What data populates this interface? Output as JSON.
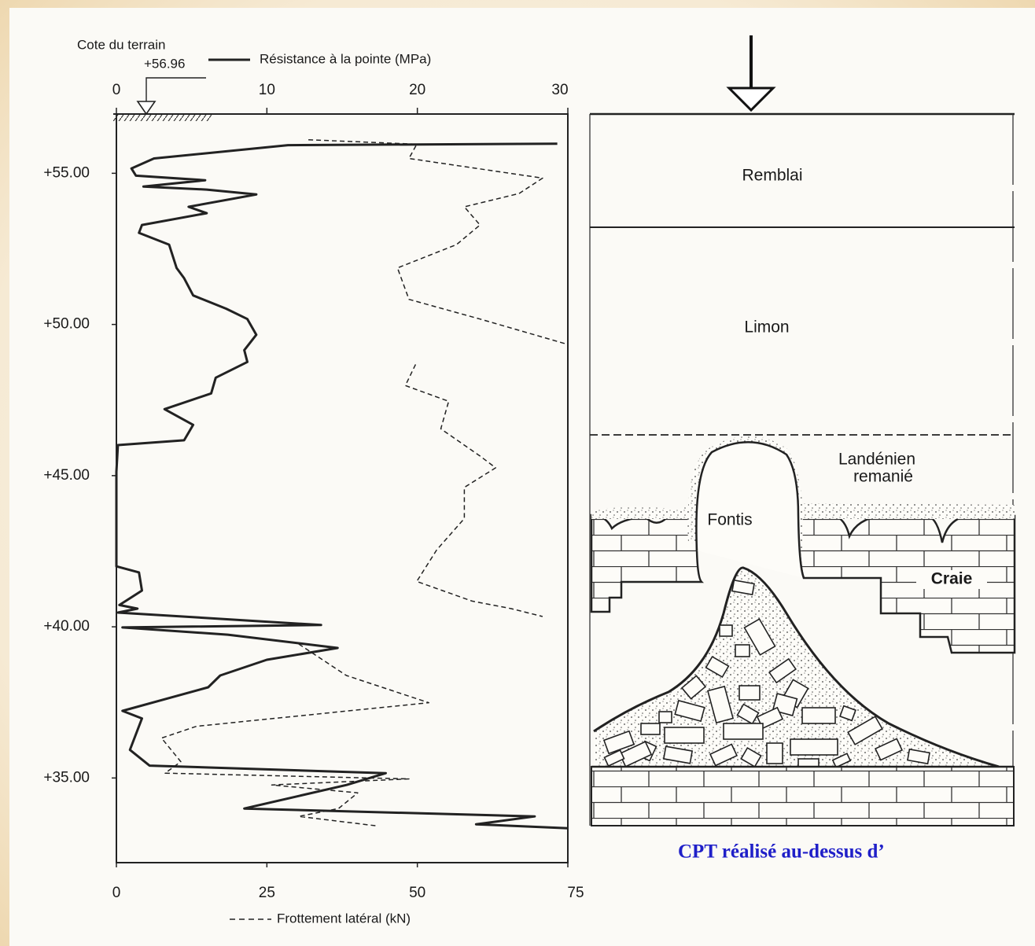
{
  "chart_data": {
    "type": "line",
    "x2_label": "Résistance à la pointe (MPa)",
    "x_label": "Frottement latéral (kN)",
    "ground": {
      "title": "Cote du terrain",
      "elevation": {
        "value": 56.96,
        "label": "+56.96"
      }
    },
    "x2lim": [
      0,
      30
    ],
    "x2ticks": [
      0,
      10,
      20,
      30
    ],
    "xlim": [
      0,
      75
    ],
    "xticks": [
      0,
      25,
      50,
      75
    ],
    "ylim": [
      32.2,
      56.96
    ],
    "yticks": [
      {
        "value": 55,
        "label": "+55.00"
      },
      {
        "value": 50,
        "label": "+50.00"
      },
      {
        "value": 45,
        "label": "+45.00"
      },
      {
        "value": 40,
        "label": "+40.00"
      },
      {
        "value": 35,
        "label": "+35.00"
      }
    ],
    "series": [
      {
        "name": "Résistance à la pointe (MPa)",
        "axis": "x2",
        "color": "#222222",
        "line_style": "solid",
        "depth": [
          55.98,
          55.93,
          55.49,
          55.16,
          54.92,
          54.77,
          54.56,
          54.46,
          54.3,
          53.89,
          53.68,
          53.29,
          53.03,
          52.64,
          51.87,
          51.53,
          50.96,
          50.52,
          50.18,
          49.66,
          49.15,
          48.76,
          48.24,
          47.72,
          47.2,
          46.68,
          46.17,
          46.01,
          45.13,
          42.0,
          41.8,
          41.2,
          40.72,
          40.6,
          40.47,
          40.06,
          39.98,
          39.74,
          39.3,
          38.91,
          38.39,
          38.0,
          37.22,
          36.97,
          35.93,
          35.41,
          35.16,
          34.77,
          33.99,
          33.73,
          33.47,
          33.34
        ],
        "values": [
          29.3,
          11.4,
          2.5,
          1.0,
          1.3,
          5.9,
          1.8,
          6.0,
          9.3,
          4.8,
          6.0,
          1.7,
          1.5,
          3.5,
          4.0,
          4.5,
          5.1,
          7.3,
          8.7,
          9.3,
          8.5,
          8.7,
          6.6,
          6.3,
          3.2,
          5.1,
          4.5,
          0.1,
          0.0,
          0.0,
          1.5,
          1.7,
          0.2,
          1.4,
          0.1,
          13.6,
          0.4,
          7.4,
          14.7,
          10.0,
          6.9,
          6.1,
          0.4,
          1.7,
          0.9,
          2.2,
          17.9,
          15.3,
          8.5,
          27.8,
          23.9,
          30.0
        ]
      },
      {
        "name": "Frottement latéral (kN)",
        "axis": "x",
        "color": "#222222",
        "line_style": "dashed",
        "depth": [
          56.11,
          55.96,
          55.49,
          54.84,
          54.33,
          53.89,
          53.29,
          52.64,
          51.87,
          50.83,
          50.18,
          49.35,
          null,
          48.68,
          47.98,
          47.46,
          46.55,
          45.65,
          45.26,
          44.61,
          43.58,
          42.54,
          41.5,
          40.85,
          40.6,
          40.34,
          null,
          39.43,
          38.39,
          37.49,
          36.71,
          36.32,
          35.54,
          35.16,
          34.97,
          34.77,
          34.51,
          33.99,
          33.73,
          33.42
        ],
        "values": [
          31.9,
          49.9,
          48.6,
          70.8,
          66.9,
          57.8,
          60.4,
          56.5,
          46.7,
          48.6,
          60.4,
          74.8,
          null,
          49.7,
          48.0,
          55.2,
          53.9,
          60.4,
          63.0,
          57.8,
          57.8,
          53.2,
          49.9,
          59.1,
          65.6,
          70.8,
          null,
          30.3,
          38.2,
          51.9,
          13.3,
          7.5,
          10.7,
          8.1,
          48.6,
          25.8,
          40.1,
          36.9,
          30.3,
          43.1
        ]
      }
    ]
  },
  "diagram": {
    "layers": [
      "Remblai",
      "Limon",
      "Landénien",
      "remanié",
      "Fontis",
      "Craie"
    ],
    "caption": "CPT réalisé au-dessus d’"
  }
}
